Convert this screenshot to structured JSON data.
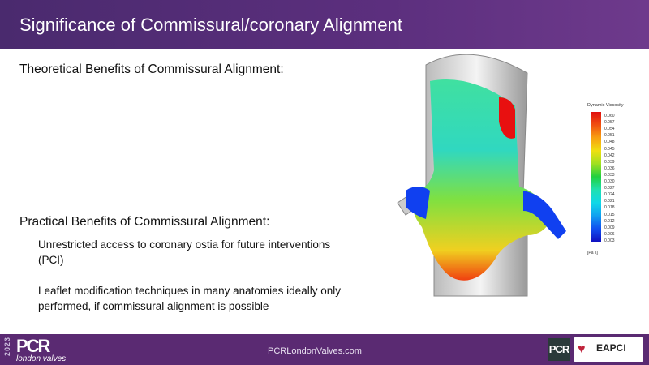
{
  "header": {
    "title": "Significance of Commissural/coronary Alignment"
  },
  "sections": [
    {
      "heading": "Theoretical Benefits of Commissural Alignment:",
      "bullets": []
    },
    {
      "heading": "Practical Benefits of Commissural Alignment:",
      "bullets": [
        "Unrestricted access to coronary ostia for future interventions (PCI)",
        "Leaflet modification techniques in many anatomies ideally only performed, if commissural alignment is possible"
      ]
    }
  ],
  "figure": {
    "legend_title": "Dynamic Viscosity",
    "unit": "[Pa s]",
    "ticks": [
      "0.060",
      "0.057",
      "0.054",
      "0.051",
      "0.048",
      "0.045",
      "0.042",
      "0.039",
      "0.036",
      "0.033",
      "0.030",
      "0.027",
      "0.024",
      "0.021",
      "0.018",
      "0.015",
      "0.012",
      "0.009",
      "0.006",
      "0.003"
    ]
  },
  "footer": {
    "year": "2023",
    "logo": "PCR",
    "logo_sub": "london valves",
    "url": "PCRLondonValves.com",
    "pcr_badge": "PCR",
    "eapci": "EAPCI"
  },
  "colors": {
    "header": "#5c2f7e",
    "footer": "#5a2a72"
  }
}
